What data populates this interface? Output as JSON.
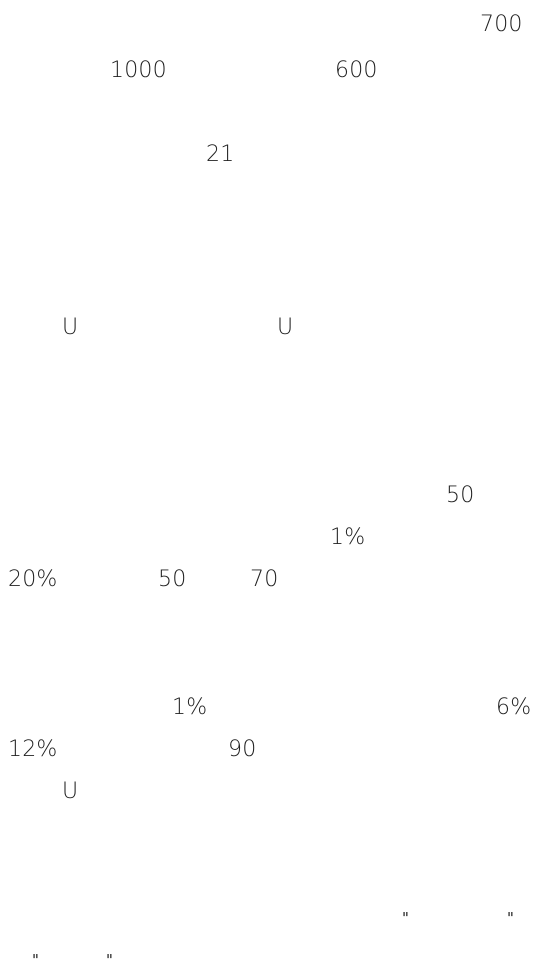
{
  "document": {
    "fragments": [
      "700",
      "1000",
      "600",
      "21",
      "U",
      "U",
      "50",
      "1%",
      "20%",
      "50",
      "70",
      "1%",
      "6%",
      "12%",
      "90",
      "U"
    ],
    "quotes": [
      "\"",
      "\"",
      "\"",
      "\""
    ]
  }
}
